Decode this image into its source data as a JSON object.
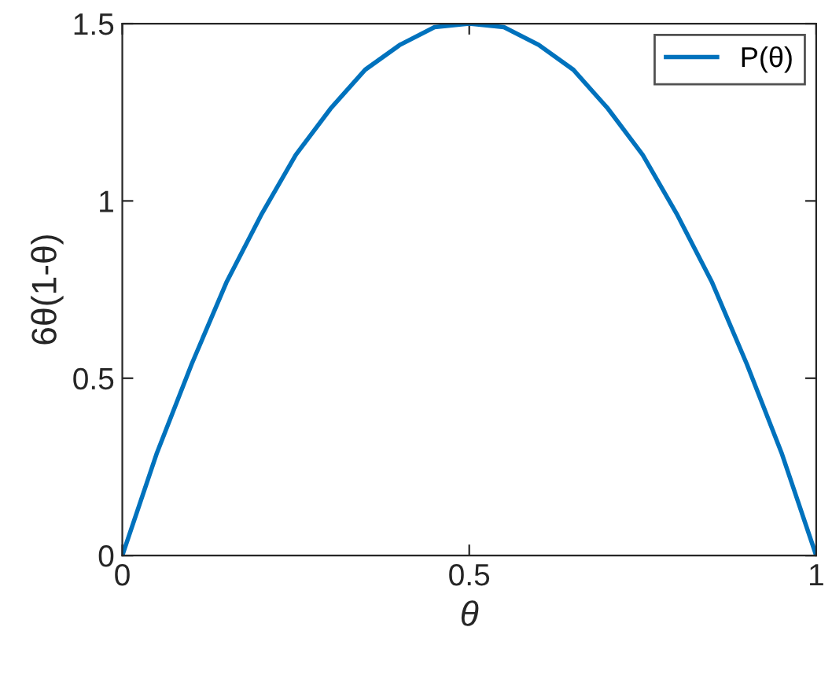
{
  "chart_data": {
    "type": "line",
    "xlabel": "θ",
    "ylabel": "6θ(1-θ)",
    "x": [
      0,
      0.05,
      0.1,
      0.15,
      0.2,
      0.25,
      0.3,
      0.35,
      0.4,
      0.45,
      0.5,
      0.55,
      0.6,
      0.65,
      0.7,
      0.75,
      0.8,
      0.85,
      0.9,
      0.95,
      1
    ],
    "series": [
      {
        "name": "P(θ)",
        "color": "#0072bd",
        "values": [
          0,
          0.29,
          0.54,
          0.77,
          0.96,
          1.13,
          1.26,
          1.37,
          1.44,
          1.49,
          1.5,
          1.49,
          1.44,
          1.37,
          1.26,
          1.13,
          0.96,
          0.77,
          0.54,
          0.29,
          0
        ]
      }
    ],
    "xlim": [
      0,
      1
    ],
    "xticks": [
      0,
      0.5,
      1
    ],
    "ylim": [
      0,
      1.5
    ],
    "yticks": [
      0,
      0.5,
      1,
      1.5
    ],
    "grid": false,
    "legend": "top right",
    "marker": "none",
    "line_style": "solid"
  }
}
